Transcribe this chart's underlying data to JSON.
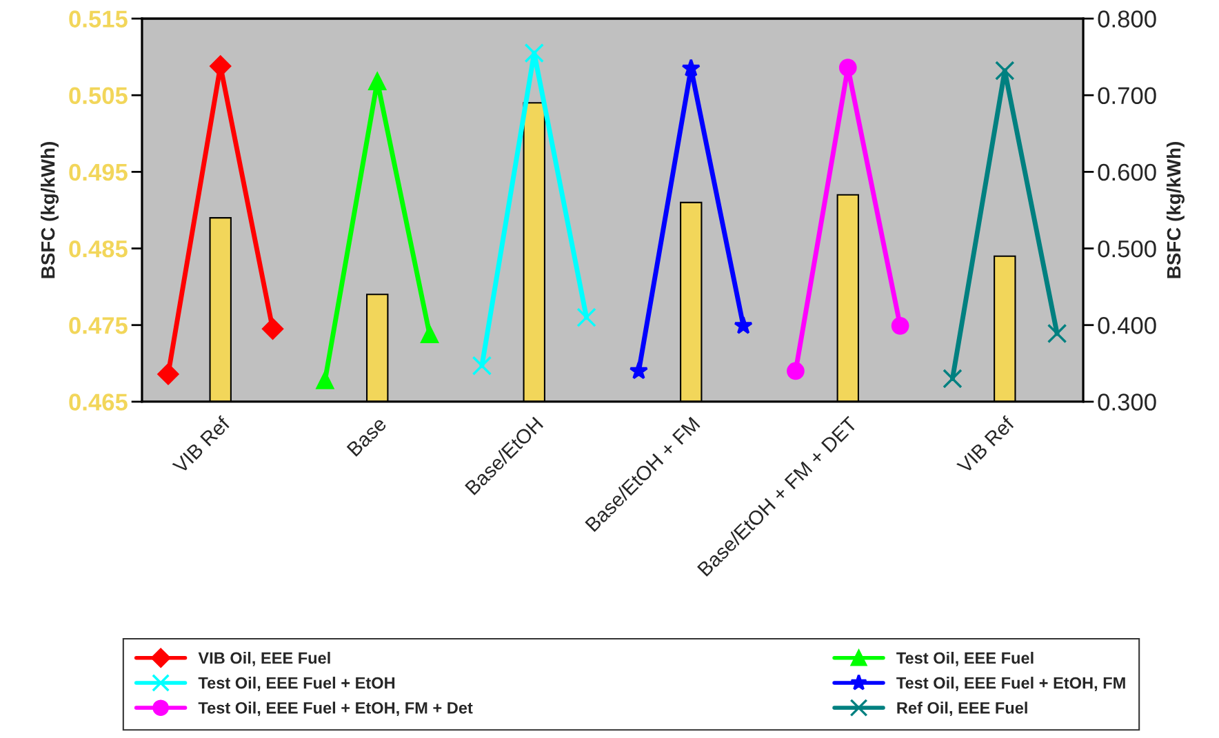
{
  "chart_data": {
    "type": "bar",
    "ylabel": "BSFC (kg/kWh)",
    "y2label": "BSFC (kg/kWh)",
    "legend": "bottom",
    "categories": [
      null,
      "VIB Ref",
      null,
      null,
      "Base",
      null,
      null,
      "Base/EtOH",
      null,
      null,
      "Base/EtOH + FM",
      null,
      null,
      "Base/EtOH + FM + DET",
      null,
      null,
      "VIB Ref",
      null
    ],
    "ylim": [
      0.465,
      0.515
    ],
    "yticks": [
      {
        "value": 0.465,
        "label": "0.465"
      },
      {
        "value": 0.475,
        "label": "0.475"
      },
      {
        "value": 0.485,
        "label": "0.485"
      },
      {
        "value": 0.495,
        "label": "0.495"
      },
      {
        "value": 0.505,
        "label": "0.505"
      },
      {
        "value": 0.515,
        "label": "0.515"
      }
    ],
    "y2lim": [
      0.3,
      0.8
    ],
    "y2ticks": [
      {
        "value": 0.3,
        "label": "0.300"
      },
      {
        "value": 0.4,
        "label": "0.400"
      },
      {
        "value": 0.5,
        "label": "0.500"
      },
      {
        "value": 0.6,
        "label": "0.600"
      },
      {
        "value": 0.7,
        "label": "0.700"
      },
      {
        "value": 0.8,
        "label": "0.800"
      }
    ],
    "series": [
      {
        "color": "#f2d65a",
        "values": [
          null,
          0.489,
          null,
          null,
          0.479,
          null,
          null,
          0.504,
          null,
          null,
          0.491,
          null,
          null,
          0.492,
          null,
          null,
          0.484,
          null
        ]
      },
      {
        "type": "line",
        "name": "VIB Oil, EEE Fuel",
        "color": "#ff0000",
        "axis": "y2",
        "marker": "diamond",
        "values": [
          0.336,
          0.738,
          0.395,
          null,
          null,
          null,
          null,
          null,
          null,
          null,
          null,
          null,
          null,
          null,
          null,
          null,
          null,
          null
        ]
      },
      {
        "type": "line",
        "name": "Test Oil, EEE Fuel",
        "color": "#00ff00",
        "axis": "y2",
        "marker": "triangle",
        "values": [
          null,
          null,
          null,
          0.328,
          0.718,
          0.388,
          null,
          null,
          null,
          null,
          null,
          null,
          null,
          null,
          null,
          null,
          null,
          null
        ]
      },
      {
        "type": "line",
        "name": "Test Oil, EEE Fuel + EtOH",
        "color": "#00ffff",
        "axis": "y2",
        "marker": "cross",
        "values": [
          null,
          null,
          null,
          null,
          null,
          null,
          0.347,
          0.755,
          0.41,
          null,
          null,
          null,
          null,
          null,
          null,
          null,
          null,
          null
        ]
      },
      {
        "type": "line",
        "name": "Test Oil, EEE Fuel + EtOH, FM",
        "color": "#0000ff",
        "axis": "y2",
        "marker": "star",
        "values": [
          null,
          null,
          null,
          null,
          null,
          null,
          null,
          null,
          null,
          0.34,
          0.735,
          0.399,
          null,
          null,
          null,
          null,
          null,
          null
        ]
      },
      {
        "type": "line",
        "name": "Test Oil, EEE Fuel + EtOH, FM + Det",
        "color": "#ff00ff",
        "axis": "y2",
        "marker": "circle",
        "values": [
          null,
          null,
          null,
          null,
          null,
          null,
          null,
          null,
          null,
          null,
          null,
          null,
          0.34,
          0.736,
          0.399,
          null,
          null,
          null
        ]
      },
      {
        "type": "line",
        "name": "Ref Oil, EEE Fuel",
        "color": "#008080",
        "axis": "y2",
        "marker": "cross",
        "values": [
          null,
          null,
          null,
          null,
          null,
          null,
          null,
          null,
          null,
          null,
          null,
          null,
          null,
          null,
          null,
          0.33,
          0.732,
          0.389
        ]
      }
    ]
  }
}
